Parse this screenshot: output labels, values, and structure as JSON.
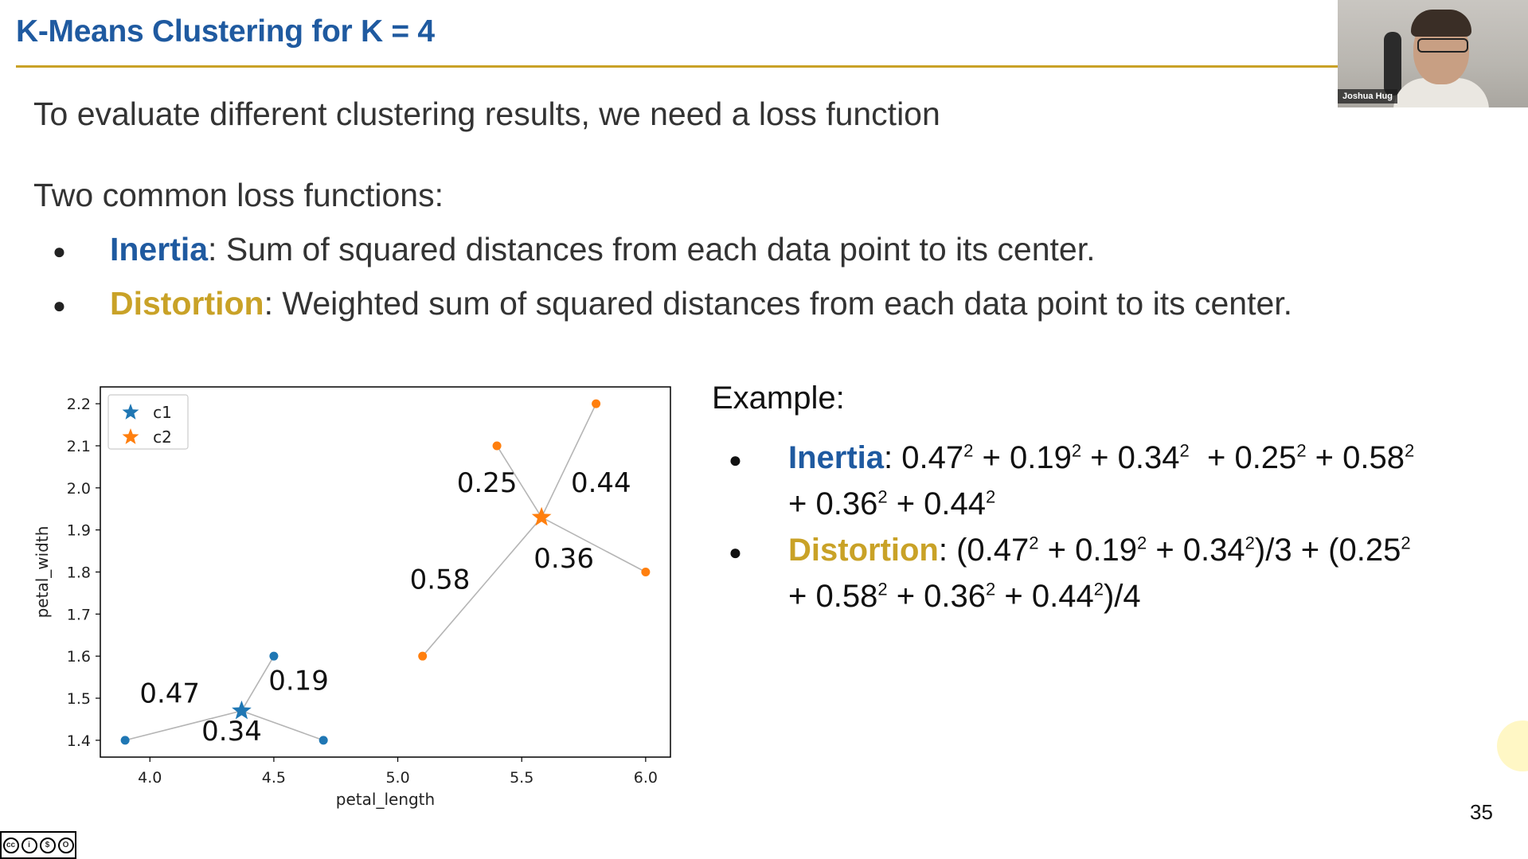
{
  "slide": {
    "title": "K-Means Clustering for K = 4",
    "intro": "To evaluate different clustering results, we need a loss function",
    "subheading": "Two common loss functions:",
    "bullets": [
      {
        "term": "Inertia",
        "text": ": Sum of squared distances from each data point to its center."
      },
      {
        "term": "Distortion",
        "text": ": Weighted sum of squared distances from each data point to its center."
      }
    ],
    "page_number": "35",
    "colors": {
      "title": "#1f5aa0",
      "rule": "#c9a227",
      "inertia": "#1f5aa0",
      "distortion": "#c9a227"
    }
  },
  "webcam": {
    "name": "Joshua Hug"
  },
  "example": {
    "title": "Example:",
    "inertia_term": "Inertia",
    "distortion_term": "Distortion"
  },
  "chart_data": {
    "type": "scatter",
    "xlabel": "petal_length",
    "ylabel": "petal_width",
    "xlim": [
      3.8,
      6.1
    ],
    "ylim": [
      1.36,
      2.24
    ],
    "xticks": [
      4.0,
      4.5,
      5.0,
      5.5,
      6.0
    ],
    "xtick_labels": [
      "4.0",
      "4.5",
      "5.0",
      "5.5",
      "6.0"
    ],
    "yticks": [
      1.4,
      1.5,
      1.6,
      1.7,
      1.8,
      1.9,
      2.0,
      2.1,
      2.2
    ],
    "ytick_labels": [
      "1.4",
      "1.5",
      "1.6",
      "1.7",
      "1.8",
      "1.9",
      "2.0",
      "2.1",
      "2.2"
    ],
    "legend": {
      "placement": "top-left",
      "entries": [
        "c1",
        "c2"
      ]
    },
    "series": [
      {
        "name": "c1",
        "color": "#1f77b4",
        "center": [
          4.37,
          1.47
        ],
        "points": [
          [
            3.9,
            1.4
          ],
          [
            4.5,
            1.6
          ],
          [
            4.7,
            1.4
          ]
        ]
      },
      {
        "name": "c2",
        "color": "#ff7f0e",
        "center": [
          5.58,
          1.93
        ],
        "points": [
          [
            5.4,
            2.1
          ],
          [
            5.8,
            2.2
          ],
          [
            6.0,
            1.8
          ],
          [
            5.1,
            1.6
          ]
        ]
      }
    ],
    "annotations": [
      {
        "text": "0.47",
        "x": 4.08,
        "y": 1.49
      },
      {
        "text": "0.19",
        "x": 4.6,
        "y": 1.52
      },
      {
        "text": "0.34",
        "x": 4.33,
        "y": 1.4
      },
      {
        "text": "0.25",
        "x": 5.36,
        "y": 1.99
      },
      {
        "text": "0.44",
        "x": 5.82,
        "y": 1.99
      },
      {
        "text": "0.36",
        "x": 5.67,
        "y": 1.81
      },
      {
        "text": "0.58",
        "x": 5.17,
        "y": 1.76
      }
    ]
  }
}
